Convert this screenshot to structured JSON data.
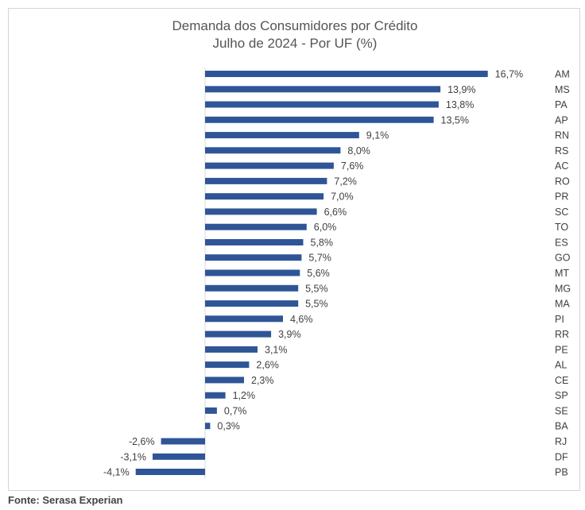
{
  "source": "Fonte: Serasa Experian",
  "chart_data": {
    "type": "bar",
    "orientation": "horizontal",
    "title": "Demanda dos Consumidores por Crédito",
    "subtitle": "Julho de 2024 - Por UF (%)",
    "categories": [
      "AM",
      "MS",
      "PA",
      "AP",
      "RN",
      "RS",
      "AC",
      "RO",
      "PR",
      "SC",
      "TO",
      "ES",
      "GO",
      "MT",
      "MG",
      "MA",
      "PI",
      "RR",
      "PE",
      "AL",
      "CE",
      "SP",
      "SE",
      "BA",
      "RJ",
      "DF",
      "PB"
    ],
    "values": [
      16.7,
      13.9,
      13.8,
      13.5,
      9.1,
      8.0,
      7.6,
      7.2,
      7.0,
      6.6,
      6.0,
      5.8,
      5.7,
      5.6,
      5.5,
      5.5,
      4.6,
      3.9,
      3.1,
      2.6,
      2.3,
      1.2,
      0.7,
      0.3,
      -2.6,
      -3.1,
      -4.1
    ],
    "value_labels": [
      "16,7%",
      "13,9%",
      "13,8%",
      "13,5%",
      "9,1%",
      "8,0%",
      "7,6%",
      "7,2%",
      "7,0%",
      "6,6%",
      "6,0%",
      "5,8%",
      "5,7%",
      "5,6%",
      "5,5%",
      "5,5%",
      "4,6%",
      "3,9%",
      "3,1%",
      "2,6%",
      "2,3%",
      "1,2%",
      "0,7%",
      "0,3%",
      "-2,6%",
      "-3,1%",
      "-4,1%"
    ],
    "bar_color": "#2f5597",
    "grid": false,
    "legend": "none",
    "category_labels_position": "right"
  }
}
